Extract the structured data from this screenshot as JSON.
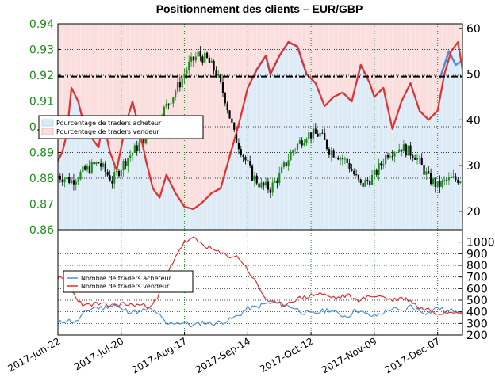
{
  "colors": {
    "price_up": "#1a8c1a",
    "price_down": "#000000",
    "buyer_line": "#4a90d9",
    "seller_line": "#e03030",
    "buyer_fill": "#ddebf7",
    "seller_fill": "#fbdede",
    "grid_green": "#1a8c1a",
    "tick_green": "#1a8c1a"
  },
  "chart_data": [
    {
      "type": "line",
      "title": "Positionnement des clients – EUR/GBP",
      "price_axis": {
        "ylim": [
          0.86,
          0.94
        ],
        "ticks": [
          "0.86",
          "0.87",
          "0.88",
          "0.89",
          "0.90",
          "0.91",
          "0.92",
          "0.93",
          "0.94"
        ]
      },
      "pct_axis": {
        "ylim": [
          16,
          61
        ],
        "ticks": [
          "20",
          "30",
          "40",
          "50",
          "60"
        ]
      },
      "reference_line_price": 0.9195,
      "x_dates": [
        "2017-Jun-22",
        "2017-Jul-20",
        "2017-Aug-17",
        "2017-Sep-14",
        "2017-Oct-12",
        "2017-Nov-09",
        "2017-Dec-07"
      ],
      "x_range": [
        0,
        179
      ],
      "x_tick_positions": [
        0,
        28,
        56,
        84,
        112,
        140,
        168
      ],
      "legend": [
        "Pourcentage de traders acheteur",
        "Pourcentage de traders vendeur"
      ],
      "legend_position": "center-left",
      "price_key": [
        [
          0,
          0.881
        ],
        [
          6,
          0.879
        ],
        [
          12,
          0.883
        ],
        [
          18,
          0.886
        ],
        [
          24,
          0.879
        ],
        [
          30,
          0.887
        ],
        [
          36,
          0.893
        ],
        [
          42,
          0.9
        ],
        [
          48,
          0.908
        ],
        [
          54,
          0.917
        ],
        [
          58,
          0.924
        ],
        [
          62,
          0.928
        ],
        [
          66,
          0.926
        ],
        [
          70,
          0.921
        ],
        [
          74,
          0.911
        ],
        [
          78,
          0.897
        ],
        [
          82,
          0.889
        ],
        [
          86,
          0.881
        ],
        [
          90,
          0.877
        ],
        [
          94,
          0.876
        ],
        [
          98,
          0.881
        ],
        [
          104,
          0.891
        ],
        [
          110,
          0.897
        ],
        [
          116,
          0.897
        ],
        [
          120,
          0.891
        ],
        [
          124,
          0.889
        ],
        [
          128,
          0.886
        ],
        [
          134,
          0.877
        ],
        [
          140,
          0.881
        ],
        [
          146,
          0.89
        ],
        [
          152,
          0.892
        ],
        [
          158,
          0.889
        ],
        [
          164,
          0.88
        ],
        [
          168,
          0.877
        ],
        [
          172,
          0.879
        ],
        [
          179,
          0.88
        ]
      ],
      "seller_pct_key": [
        [
          0,
          31
        ],
        [
          2,
          33
        ],
        [
          4,
          37
        ],
        [
          6,
          47
        ],
        [
          9,
          44
        ],
        [
          12,
          38
        ],
        [
          15,
          36
        ],
        [
          18,
          34
        ],
        [
          20,
          40
        ],
        [
          23,
          33
        ],
        [
          26,
          29
        ],
        [
          30,
          39
        ],
        [
          33,
          44
        ],
        [
          36,
          38
        ],
        [
          39,
          31
        ],
        [
          42,
          25
        ],
        [
          45,
          23
        ],
        [
          48,
          28
        ],
        [
          52,
          24
        ],
        [
          56,
          21
        ],
        [
          60,
          20.5
        ],
        [
          64,
          22
        ],
        [
          68,
          24
        ],
        [
          72,
          25
        ],
        [
          76,
          32
        ],
        [
          80,
          39
        ],
        [
          84,
          47
        ],
        [
          88,
          51
        ],
        [
          92,
          54
        ],
        [
          94,
          50
        ],
        [
          98,
          54
        ],
        [
          102,
          57
        ],
        [
          106,
          56
        ],
        [
          110,
          50
        ],
        [
          114,
          48
        ],
        [
          118,
          43
        ],
        [
          122,
          45
        ],
        [
          126,
          46
        ],
        [
          130,
          44
        ],
        [
          134,
          52
        ],
        [
          138,
          48
        ],
        [
          140,
          45
        ],
        [
          144,
          47
        ],
        [
          148,
          38
        ],
        [
          152,
          44
        ],
        [
          156,
          48
        ],
        [
          160,
          42
        ],
        [
          164,
          40
        ],
        [
          168,
          42
        ],
        [
          171,
          50
        ],
        [
          174,
          55
        ],
        [
          177,
          57
        ],
        [
          179,
          51
        ]
      ],
      "buyer_band_tail": [
        [
          169,
          49
        ],
        [
          173,
          55
        ],
        [
          176,
          52
        ],
        [
          179,
          53
        ]
      ]
    },
    {
      "type": "line",
      "ylim": [
        200,
        1100
      ],
      "y_ticks": [
        "200",
        "300",
        "400",
        "500",
        "600",
        "700",
        "800",
        "900",
        "1000"
      ],
      "legend": [
        "Nombre de traders acheteur",
        "Nombre de traders vendeur"
      ],
      "legend_position": "left",
      "buyer_key": [
        [
          0,
          300
        ],
        [
          4,
          330
        ],
        [
          8,
          310
        ],
        [
          12,
          395
        ],
        [
          16,
          440
        ],
        [
          20,
          430
        ],
        [
          24,
          470
        ],
        [
          28,
          420
        ],
        [
          32,
          405
        ],
        [
          36,
          400
        ],
        [
          40,
          425
        ],
        [
          44,
          390
        ],
        [
          48,
          290
        ],
        [
          52,
          310
        ],
        [
          56,
          305
        ],
        [
          60,
          280
        ],
        [
          64,
          310
        ],
        [
          68,
          300
        ],
        [
          72,
          310
        ],
        [
          76,
          330
        ],
        [
          80,
          370
        ],
        [
          84,
          430
        ],
        [
          88,
          440
        ],
        [
          92,
          470
        ],
        [
          96,
          475
        ],
        [
          100,
          460
        ],
        [
          104,
          440
        ],
        [
          108,
          400
        ],
        [
          112,
          380
        ],
        [
          116,
          400
        ],
        [
          120,
          420
        ],
        [
          124,
          380
        ],
        [
          128,
          360
        ],
        [
          132,
          420
        ],
        [
          136,
          380
        ],
        [
          140,
          360
        ],
        [
          144,
          395
        ],
        [
          148,
          430
        ],
        [
          152,
          400
        ],
        [
          156,
          450
        ],
        [
          160,
          410
        ],
        [
          164,
          390
        ],
        [
          168,
          440
        ],
        [
          172,
          400
        ],
        [
          176,
          420
        ],
        [
          179,
          390
        ]
      ],
      "seller_key": [
        [
          0,
          700
        ],
        [
          4,
          650
        ],
        [
          8,
          520
        ],
        [
          12,
          450
        ],
        [
          16,
          470
        ],
        [
          20,
          460
        ],
        [
          24,
          450
        ],
        [
          28,
          470
        ],
        [
          32,
          460
        ],
        [
          36,
          460
        ],
        [
          40,
          450
        ],
        [
          44,
          510
        ],
        [
          48,
          700
        ],
        [
          52,
          880
        ],
        [
          56,
          1000
        ],
        [
          60,
          1030
        ],
        [
          64,
          980
        ],
        [
          68,
          940
        ],
        [
          72,
          900
        ],
        [
          76,
          880
        ],
        [
          80,
          870
        ],
        [
          84,
          760
        ],
        [
          88,
          640
        ],
        [
          92,
          510
        ],
        [
          96,
          470
        ],
        [
          100,
          460
        ],
        [
          104,
          500
        ],
        [
          108,
          520
        ],
        [
          112,
          540
        ],
        [
          116,
          560
        ],
        [
          120,
          530
        ],
        [
          124,
          520
        ],
        [
          128,
          545
        ],
        [
          132,
          500
        ],
        [
          136,
          520
        ],
        [
          140,
          540
        ],
        [
          144,
          530
        ],
        [
          148,
          500
        ],
        [
          152,
          520
        ],
        [
          156,
          500
        ],
        [
          160,
          430
        ],
        [
          164,
          420
        ],
        [
          168,
          390
        ],
        [
          172,
          400
        ],
        [
          176,
          410
        ],
        [
          179,
          395
        ]
      ]
    }
  ]
}
